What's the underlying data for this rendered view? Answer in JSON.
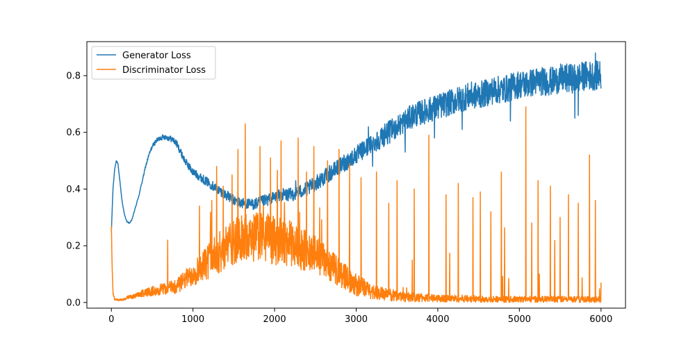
{
  "chart_data": {
    "type": "line",
    "title": "",
    "xlabel": "",
    "ylabel": "",
    "xlim": [
      -300,
      6300
    ],
    "ylim": [
      -0.02,
      0.92
    ],
    "xticks": [
      0,
      1000,
      2000,
      3000,
      4000,
      5000,
      6000
    ],
    "xtick_labels": [
      "0",
      "1000",
      "2000",
      "3000",
      "4000",
      "5000",
      "6000"
    ],
    "yticks": [
      0.0,
      0.2,
      0.4,
      0.6,
      0.8
    ],
    "ytick_labels": [
      "0.0",
      "0.2",
      "0.4",
      "0.6",
      "0.8"
    ],
    "grid": false,
    "legend_position": "top-left",
    "series": [
      {
        "name": "Generator Loss",
        "color": "#1f77b4",
        "x": [
          0,
          20,
          40,
          60,
          80,
          100,
          130,
          160,
          190,
          220,
          250,
          280,
          310,
          340,
          380,
          420,
          460,
          500,
          550,
          600,
          650,
          700,
          750,
          800,
          850,
          900,
          950,
          1000,
          1100,
          1200,
          1300,
          1400,
          1500,
          1600,
          1700,
          1800,
          1900,
          2000,
          2100,
          2200,
          2300,
          2400,
          2500,
          2600,
          2700,
          2800,
          2900,
          3000,
          3100,
          3200,
          3300,
          3400,
          3500,
          3600,
          3700,
          3800,
          3900,
          4000,
          4100,
          4200,
          4300,
          4400,
          4500,
          4600,
          4700,
          4800,
          4900,
          5000,
          5100,
          5200,
          5300,
          5400,
          5500,
          5600,
          5700,
          5800,
          5900,
          6000
        ],
        "values": [
          0.25,
          0.4,
          0.47,
          0.5,
          0.49,
          0.44,
          0.36,
          0.31,
          0.285,
          0.28,
          0.29,
          0.32,
          0.35,
          0.38,
          0.43,
          0.48,
          0.52,
          0.55,
          0.57,
          0.58,
          0.585,
          0.58,
          0.575,
          0.56,
          0.53,
          0.5,
          0.48,
          0.46,
          0.44,
          0.42,
          0.4,
          0.38,
          0.36,
          0.35,
          0.345,
          0.35,
          0.36,
          0.37,
          0.38,
          0.38,
          0.39,
          0.4,
          0.42,
          0.44,
          0.46,
          0.48,
          0.5,
          0.52,
          0.54,
          0.56,
          0.58,
          0.6,
          0.62,
          0.64,
          0.66,
          0.67,
          0.68,
          0.69,
          0.7,
          0.71,
          0.72,
          0.73,
          0.73,
          0.74,
          0.75,
          0.75,
          0.76,
          0.77,
          0.77,
          0.78,
          0.78,
          0.78,
          0.79,
          0.79,
          0.79,
          0.8,
          0.8,
          0.8
        ],
        "noise": [
          0,
          0.002,
          0.002,
          0.002,
          0.002,
          0.002,
          0.002,
          0.002,
          0.002,
          0.002,
          0.002,
          0.002,
          0.003,
          0.003,
          0.004,
          0.005,
          0.006,
          0.007,
          0.008,
          0.009,
          0.01,
          0.01,
          0.011,
          0.012,
          0.013,
          0.013,
          0.014,
          0.014,
          0.015,
          0.016,
          0.017,
          0.018,
          0.019,
          0.02,
          0.02,
          0.021,
          0.022,
          0.022,
          0.023,
          0.024,
          0.025,
          0.026,
          0.027,
          0.028,
          0.029,
          0.03,
          0.031,
          0.032,
          0.034,
          0.036,
          0.038,
          0.04,
          0.041,
          0.042,
          0.043,
          0.044,
          0.045,
          0.046,
          0.046,
          0.047,
          0.047,
          0.048,
          0.048,
          0.048,
          0.049,
          0.049,
          0.049,
          0.05,
          0.05,
          0.05,
          0.051,
          0.051,
          0.051,
          0.052,
          0.052,
          0.052,
          0.052,
          0.053
        ],
        "spikes": [
          [
            5930,
            0.88
          ],
          [
            5960,
            0.85
          ],
          [
            5800,
            0.84
          ],
          [
            5500,
            0.82
          ],
          [
            4700,
            0.78
          ],
          [
            4400,
            0.75
          ],
          [
            4020,
            0.73
          ],
          [
            3350,
            0.63
          ],
          [
            3150,
            0.62
          ],
          [
            2850,
            0.52
          ],
          [
            2260,
            0.43
          ],
          [
            5720,
            0.66
          ],
          [
            5680,
            0.65
          ],
          [
            4890,
            0.64
          ],
          [
            4300,
            0.61
          ],
          [
            3960,
            0.58
          ],
          [
            3600,
            0.53
          ],
          [
            3200,
            0.48
          ],
          [
            2660,
            0.43
          ],
          [
            2320,
            0.4
          ]
        ]
      },
      {
        "name": "Discriminator Loss",
        "color": "#ff7f0e",
        "x": [
          0,
          10,
          20,
          40,
          60,
          100,
          150,
          200,
          300,
          400,
          500,
          600,
          700,
          800,
          900,
          1000,
          1100,
          1200,
          1300,
          1400,
          1500,
          1600,
          1700,
          1800,
          1900,
          2000,
          2100,
          2200,
          2300,
          2400,
          2500,
          2600,
          2700,
          2800,
          2900,
          3000,
          3100,
          3200,
          3300,
          3400,
          3500,
          3600,
          3700,
          3800,
          3900,
          4000,
          4200,
          4400,
          4600,
          4800,
          5000,
          5200,
          5400,
          5600,
          5800,
          6000
        ],
        "values": [
          0.27,
          0.12,
          0.03,
          0.01,
          0.008,
          0.008,
          0.01,
          0.015,
          0.02,
          0.03,
          0.035,
          0.04,
          0.045,
          0.05,
          0.07,
          0.09,
          0.11,
          0.13,
          0.15,
          0.17,
          0.19,
          0.2,
          0.2,
          0.21,
          0.2,
          0.19,
          0.19,
          0.18,
          0.17,
          0.16,
          0.15,
          0.13,
          0.11,
          0.09,
          0.07,
          0.05,
          0.04,
          0.03,
          0.025,
          0.02,
          0.018,
          0.015,
          0.013,
          0.012,
          0.011,
          0.01,
          0.01,
          0.009,
          0.009,
          0.008,
          0.008,
          0.008,
          0.008,
          0.008,
          0.008,
          0.008
        ],
        "noise": [
          0,
          0.01,
          0.005,
          0.003,
          0.003,
          0.003,
          0.004,
          0.006,
          0.008,
          0.012,
          0.015,
          0.018,
          0.02,
          0.025,
          0.03,
          0.04,
          0.05,
          0.06,
          0.065,
          0.07,
          0.075,
          0.08,
          0.08,
          0.08,
          0.08,
          0.08,
          0.078,
          0.075,
          0.07,
          0.065,
          0.06,
          0.055,
          0.05,
          0.045,
          0.04,
          0.035,
          0.03,
          0.025,
          0.022,
          0.02,
          0.018,
          0.016,
          0.015,
          0.014,
          0.013,
          0.012,
          0.012,
          0.011,
          0.011,
          0.01,
          0.01,
          0.01,
          0.01,
          0.01,
          0.01,
          0.01
        ],
        "spikes": [
          [
            1640,
            0.63
          ],
          [
            1550,
            0.54
          ],
          [
            1820,
            0.55
          ],
          [
            2080,
            0.57
          ],
          [
            2480,
            0.55
          ],
          [
            2790,
            0.54
          ],
          [
            2290,
            0.58
          ],
          [
            1370,
            0.41
          ],
          [
            1230,
            0.36
          ],
          [
            1080,
            0.34
          ],
          [
            690,
            0.22
          ],
          [
            5080,
            0.69
          ],
          [
            5860,
            0.52
          ],
          [
            4780,
            0.46
          ],
          [
            5380,
            0.41
          ],
          [
            5600,
            0.38
          ],
          [
            5720,
            0.35
          ],
          [
            5230,
            0.43
          ],
          [
            3890,
            0.59
          ],
          [
            3250,
            0.46
          ],
          [
            3500,
            0.43
          ],
          [
            4250,
            0.42
          ],
          [
            4430,
            0.37
          ],
          [
            4520,
            0.39
          ],
          [
            4100,
            0.38
          ],
          [
            2920,
            0.49
          ],
          [
            3060,
            0.44
          ],
          [
            3710,
            0.4
          ],
          [
            5930,
            0.36
          ],
          [
            6000,
            0.07
          ],
          [
            1950,
            0.51
          ],
          [
            2650,
            0.5
          ],
          [
            2390,
            0.46
          ],
          [
            1480,
            0.45
          ],
          [
            1290,
            0.48
          ],
          [
            3400,
            0.35
          ],
          [
            4650,
            0.32
          ],
          [
            5500,
            0.3
          ],
          [
            5150,
            0.28
          ]
        ]
      }
    ]
  }
}
